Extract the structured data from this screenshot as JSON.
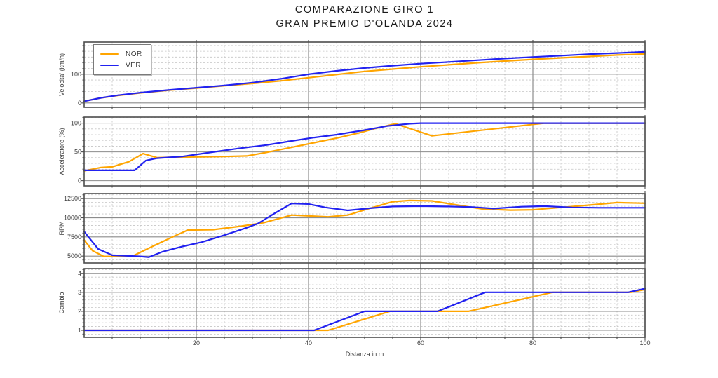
{
  "figure": {
    "title_line1": "COMPARAZIONE GIRO 1",
    "title_line2": "GRAN PREMIO D'OLANDA 2024",
    "xlabel": "Distanza in m",
    "background": "#ffffff"
  },
  "legend": {
    "entries": [
      {
        "label": "NOR",
        "color": "#FFA500"
      },
      {
        "label": "VER",
        "color": "#2222F0"
      }
    ]
  },
  "colors": {
    "nor_line": "#FFA500",
    "ver_line": "#2222F0",
    "grid_major": "#8c8c8c",
    "grid_minor": "#c4c4c4",
    "axis_border": "#4d4d4d",
    "tick_text": "#3d3d3d",
    "title_text": "#1a1a1a"
  },
  "chart_data": [
    {
      "type": "line",
      "ylabel": "Velocita' (km/h)",
      "yticks": [
        0,
        100
      ],
      "ylim": [
        -15,
        212
      ],
      "y_minor_step": 20,
      "xlim": [
        0,
        100
      ],
      "xticks": [
        20,
        40,
        60,
        80,
        100
      ],
      "x_minor_step": 5,
      "grid": true,
      "series": [
        {
          "name": "NOR",
          "color": "#FFA500",
          "x": [
            0,
            3,
            6,
            10,
            15,
            20,
            25,
            30,
            35,
            40,
            45,
            50,
            55,
            60,
            65,
            70,
            75,
            80,
            85,
            90,
            95,
            100
          ],
          "y": [
            6,
            18,
            26,
            35,
            44,
            52,
            60,
            68,
            77,
            88,
            99,
            110,
            118,
            126,
            133,
            140,
            146,
            152,
            157,
            162,
            167,
            171
          ]
        },
        {
          "name": "VER",
          "color": "#2222F0",
          "x": [
            0,
            3,
            6,
            10,
            15,
            20,
            25,
            30,
            35,
            40,
            45,
            50,
            55,
            60,
            65,
            70,
            75,
            80,
            85,
            90,
            95,
            100
          ],
          "y": [
            6,
            18,
            27,
            36,
            45,
            53,
            61,
            71,
            84,
            100,
            112,
            122,
            130,
            137,
            143,
            149,
            155,
            160,
            165,
            170,
            174,
            178
          ]
        }
      ]
    },
    {
      "type": "line",
      "ylabel": "Acceleratore (%)",
      "yticks": [
        0,
        50,
        100
      ],
      "ylim": [
        -9,
        110.5
      ],
      "y_minor_step": 10,
      "xlim": [
        0,
        100
      ],
      "xticks": [
        20,
        40,
        60,
        80,
        100
      ],
      "x_minor_step": 5,
      "grid": true,
      "series": [
        {
          "name": "NOR",
          "color": "#FFA500",
          "x": [
            0,
            3,
            5,
            8,
            10.5,
            13,
            17,
            21,
            25,
            29,
            33,
            37,
            41,
            45,
            49,
            52,
            55.5,
            62,
            82,
            100
          ],
          "y": [
            17,
            23,
            24,
            33,
            47,
            40,
            41,
            41.5,
            42,
            43,
            50,
            58,
            66,
            74,
            83,
            91,
            99,
            78,
            100,
            100
          ]
        },
        {
          "name": "VER",
          "color": "#2222F0",
          "x": [
            0,
            9,
            11,
            13,
            17.5,
            22.5,
            27.5,
            32.5,
            37,
            41,
            45,
            50,
            54,
            58,
            60,
            100
          ],
          "y": [
            18,
            18,
            35,
            39,
            42,
            49,
            56,
            62,
            69,
            75,
            80,
            88,
            95,
            99,
            100,
            100
          ]
        }
      ]
    },
    {
      "type": "line",
      "ylabel": "RPM",
      "yticks": [
        5000,
        7500,
        10000,
        12500
      ],
      "ylim": [
        4100,
        13160
      ],
      "y_minor_step": 500,
      "xlim": [
        0,
        100
      ],
      "xticks": [
        20,
        40,
        60,
        80,
        100
      ],
      "x_minor_step": 5,
      "grid": true,
      "series": [
        {
          "name": "NOR",
          "color": "#FFA500",
          "x": [
            0,
            1.5,
            3.5,
            8.5,
            12.5,
            16,
            18.5,
            23,
            28,
            32,
            37,
            43.5,
            47,
            51,
            55,
            58,
            62,
            67,
            71,
            76,
            80,
            85,
            90,
            95,
            100
          ],
          "y": [
            7100,
            5700,
            4950,
            4950,
            6380,
            7580,
            8400,
            8450,
            8900,
            9350,
            10350,
            10120,
            10350,
            11250,
            12100,
            12250,
            12200,
            11600,
            11150,
            11000,
            11050,
            11350,
            11650,
            11980,
            11900
          ]
        },
        {
          "name": "VER",
          "color": "#2222F0",
          "x": [
            0,
            2.5,
            5,
            10,
            11.5,
            14,
            17.5,
            21,
            25,
            29,
            31,
            34,
            37,
            40,
            43,
            47,
            51,
            55,
            60,
            65,
            69,
            73,
            78,
            82,
            87,
            92,
            100
          ],
          "y": [
            8200,
            5930,
            5120,
            4960,
            4850,
            5570,
            6250,
            6830,
            7730,
            8700,
            9250,
            10600,
            11870,
            11800,
            11350,
            10960,
            11250,
            11480,
            11520,
            11480,
            11400,
            11200,
            11450,
            11520,
            11350,
            11300,
            11300
          ]
        }
      ]
    },
    {
      "type": "line",
      "ylabel": "Cambio",
      "yticks": [
        1,
        2,
        3,
        4
      ],
      "ylim": [
        0.63,
        4.25
      ],
      "y_minor_step": 0.2,
      "xlim": [
        0,
        100
      ],
      "xticks": [
        20,
        40,
        60,
        80,
        100
      ],
      "x_minor_step": 5,
      "grid": true,
      "series": [
        {
          "name": "NOR",
          "color": "#FFA500",
          "x": [
            0,
            43.5,
            54.5,
            68.5,
            83.5,
            97.5,
            100
          ],
          "y": [
            1,
            1,
            2,
            2,
            3,
            3,
            3.15
          ]
        },
        {
          "name": "VER",
          "color": "#2222F0",
          "x": [
            0,
            41,
            50,
            63,
            71.5,
            97,
            100
          ],
          "y": [
            1,
            1,
            2,
            2,
            3,
            3,
            3.2
          ]
        }
      ]
    }
  ]
}
